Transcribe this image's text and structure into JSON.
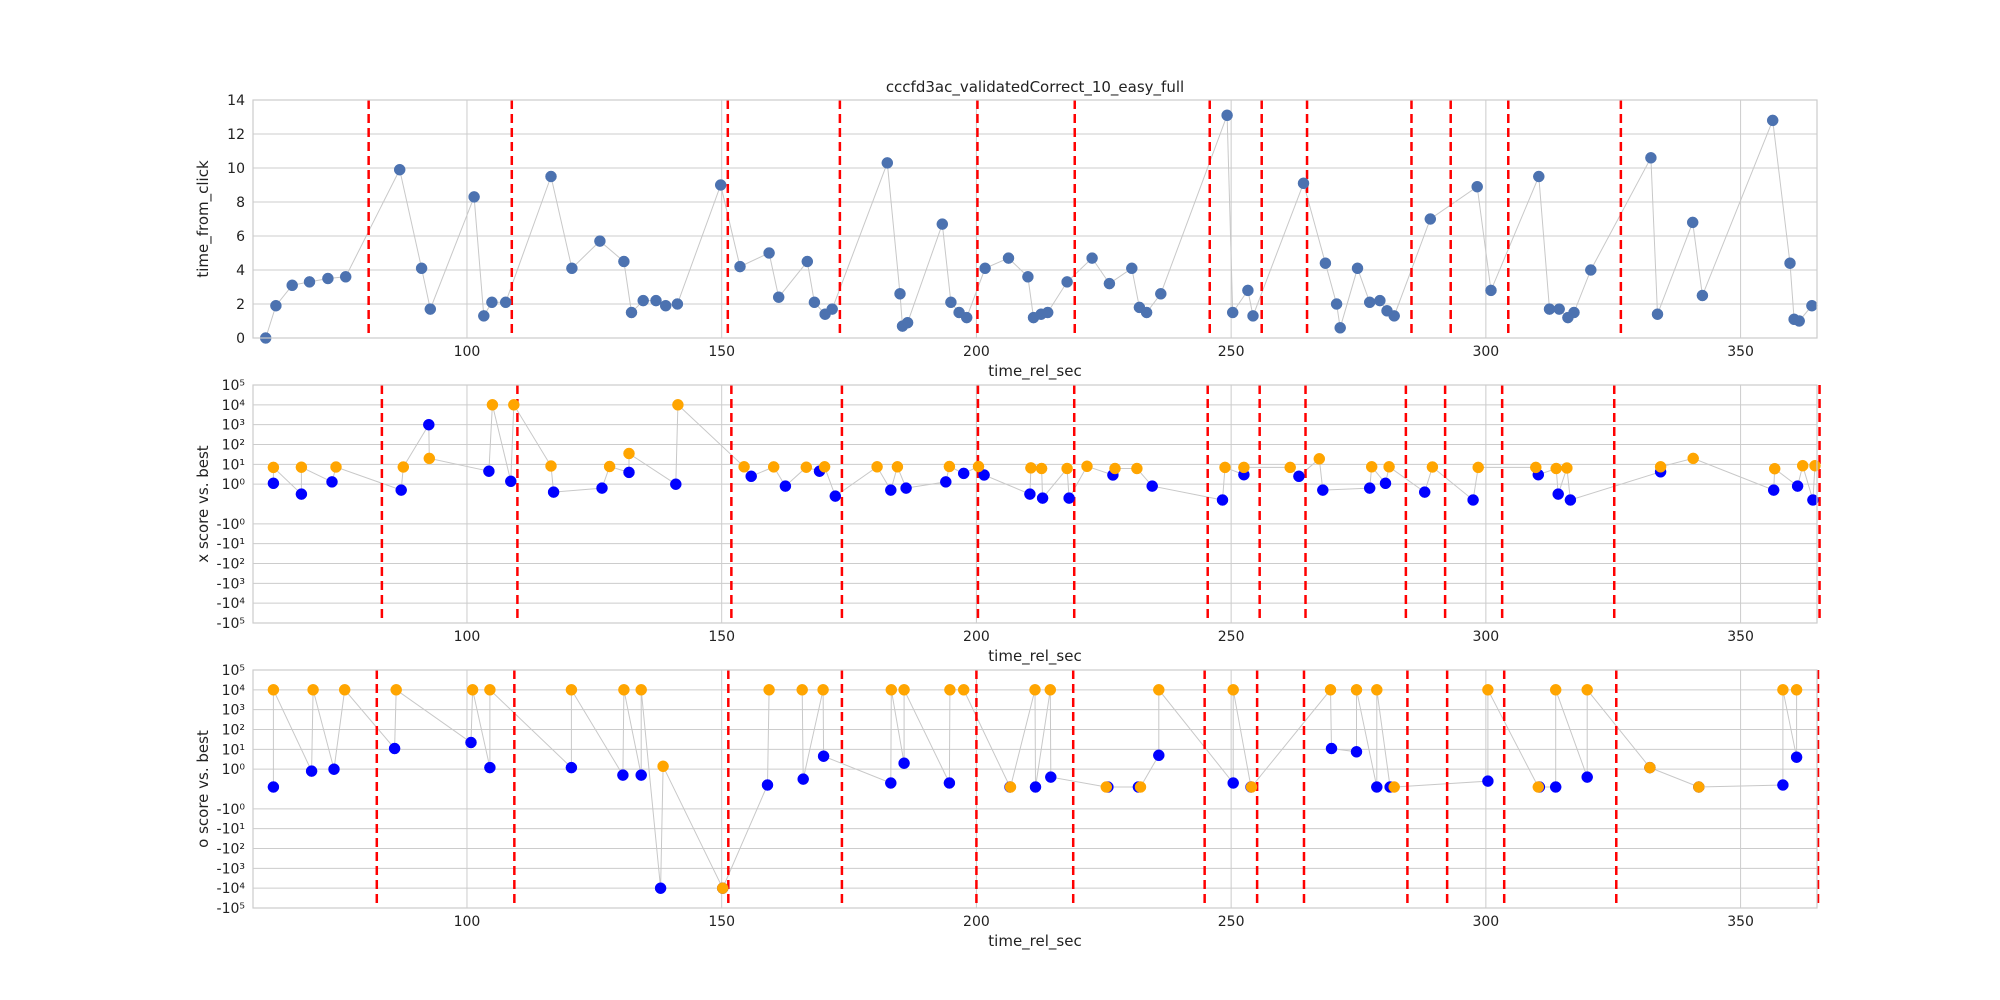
{
  "chart_data": [
    {
      "type": "scatter",
      "title": "cccfd3ac_validatedCorrect_10_easy_full",
      "xlabel": "time_rel_sec",
      "ylabel": "time_from_click",
      "xlim": [
        58,
        365
      ],
      "ylim": [
        0,
        14
      ],
      "yscale": "linear",
      "x_ticks": [
        100,
        150,
        200,
        250,
        300,
        350
      ],
      "x_tick_labels": [
        "100",
        "150",
        "200",
        "250",
        "300",
        "350"
      ],
      "y_ticks": [
        0,
        2,
        4,
        6,
        8,
        10,
        12,
        14
      ],
      "y_tick_labels": [
        "0",
        "2",
        "4",
        "6",
        "8",
        "10",
        "12",
        "14"
      ],
      "grid": true,
      "connector_color": "#c8c8c8",
      "vlines_color": "#ff0000",
      "vlines": [
        80.7,
        108.8,
        151.2,
        173.2,
        200.2,
        219.3,
        245.8,
        256,
        264.9,
        285.4,
        293.1,
        304.4,
        326.5
      ],
      "series": [
        {
          "color": "#4c72b0",
          "x": [
            60.5,
            62.5,
            65.7,
            69.1,
            72.7,
            76.2,
            86.8,
            91.1,
            92.8,
            101.4,
            103.3,
            104.9,
            107.6,
            116.5,
            120.6,
            126.1,
            130.8,
            132.3,
            134.6,
            137.1,
            139,
            141.3,
            149.8,
            153.6,
            159.3,
            161.2,
            166.8,
            168.2,
            170.3,
            171.7,
            182.5,
            185,
            185.5,
            186.5,
            193.3,
            195,
            196.6,
            198.1,
            201.7,
            206.3,
            210.1,
            211.2,
            212.7,
            214,
            217.8,
            222.7,
            226.1,
            230.5,
            232,
            233.4,
            236.2,
            249.2,
            250.3,
            253.3,
            254.3,
            264.2,
            268.5,
            270.7,
            271.4,
            274.8,
            277.2,
            279.2,
            280.6,
            282,
            289.1,
            298.3,
            301,
            310.4,
            312.5,
            314.4,
            316.1,
            317.3,
            320.6,
            332.4,
            333.7,
            340.6,
            342.5,
            356.3,
            359.7,
            360.5,
            361.5,
            364
          ],
          "y": [
            0,
            1.9,
            3.1,
            3.3,
            3.5,
            3.6,
            9.9,
            4.1,
            1.7,
            8.3,
            1.3,
            2.1,
            2.1,
            9.5,
            4.1,
            5.7,
            4.5,
            1.5,
            2.2,
            2.2,
            1.9,
            2,
            9,
            4.2,
            5,
            2.4,
            4.5,
            2.1,
            1.4,
            1.7,
            10.3,
            2.6,
            0.7,
            0.9,
            6.7,
            2.1,
            1.5,
            1.2,
            4.1,
            4.7,
            3.6,
            1.2,
            1.4,
            1.5,
            3.3,
            4.7,
            3.2,
            4.1,
            1.8,
            1.5,
            2.6,
            13.1,
            1.5,
            2.8,
            1.3,
            9.1,
            4.4,
            2,
            0.6,
            4.1,
            2.1,
            2.2,
            1.6,
            1.3,
            7,
            8.9,
            2.8,
            9.5,
            1.7,
            1.7,
            1.2,
            1.5,
            4,
            10.6,
            1.4,
            6.8,
            2.5,
            12.8,
            4.4,
            1.1,
            1,
            1.9
          ]
        }
      ]
    },
    {
      "type": "scatter",
      "title": "",
      "xlabel": "time_rel_sec",
      "ylabel": "x score vs. best",
      "xlim": [
        58,
        365
      ],
      "ylim": [
        -100000,
        100000
      ],
      "yscale": "symlog",
      "x_ticks": [
        100,
        150,
        200,
        250,
        300,
        350
      ],
      "x_tick_labels": [
        "100",
        "150",
        "200",
        "250",
        "300",
        "350"
      ],
      "y_ticks": [
        -100000,
        -10000,
        -1000,
        -100,
        -10,
        -1,
        1,
        10,
        100,
        1000,
        10000,
        100000
      ],
      "y_tick_labels": [
        "-10⁵",
        "-10⁴",
        "-10³",
        "-10²",
        "-10¹",
        "-10⁰",
        "10⁰",
        "10¹",
        "10²",
        "10³",
        "10⁴",
        "10⁵"
      ],
      "grid": true,
      "connector_color": "#c8c8c8",
      "vlines_color": "#ff0000",
      "vlines": [
        83.3,
        109.9,
        151.9,
        173.6,
        200.3,
        219.2,
        245.4,
        255.6,
        264.6,
        284.3,
        292,
        303.2,
        325.2,
        365.5
      ],
      "series": [
        {
          "name": "",
          "color": "#0000ff",
          "x": [
            62,
            67.5,
            73.5,
            87.1,
            92.5,
            104.3,
            108.6,
            117,
            126.5,
            131.8,
            141,
            155.8,
            162.5,
            169.2,
            172.3,
            183.2,
            186.2,
            194,
            197.5,
            201.5,
            210.5,
            213,
            218.2,
            226.8,
            234.5,
            248.3,
            252.5,
            263.3,
            268,
            277.2,
            280.3,
            288,
            297.5,
            310.3,
            314.2,
            316.6,
            334.3,
            356.5,
            361.2,
            364.2
          ],
          "y": [
            1.1,
            0.5,
            1.3,
            0.7,
            1000,
            4.5,
            1.4,
            0.6,
            0.8,
            3.9,
            1,
            2.5,
            0.9,
            4.5,
            0.4,
            0.7,
            0.8,
            1.3,
            3.5,
            2.9,
            0.5,
            0.3,
            0.3,
            2.9,
            0.9,
            0.2,
            3,
            2.5,
            0.7,
            0.8,
            1.1,
            0.6,
            0.2,
            3,
            0.5,
            0.2,
            4.2,
            0.7,
            0.9,
            0.2
          ]
        },
        {
          "name": "",
          "color": "#ffa500",
          "x": [
            62,
            67.5,
            74.3,
            87.5,
            92.6,
            105,
            109.2,
            116.5,
            128,
            131.8,
            141.4,
            154.4,
            160.2,
            166.6,
            170.2,
            180.5,
            184.5,
            194.7,
            200.4,
            210.7,
            212.8,
            217.8,
            221.7,
            227.2,
            231.5,
            248.8,
            252.5,
            261.6,
            267.3,
            277.6,
            281,
            289.5,
            298.5,
            309.8,
            313.8,
            315.9,
            334.3,
            340.7,
            356.7,
            362.2,
            364.6
          ],
          "y": [
            7,
            7.2,
            7.3,
            7.3,
            20,
            10000,
            10000,
            8.2,
            7.8,
            35,
            10000,
            7.5,
            7.4,
            7.2,
            7.5,
            7.5,
            7.5,
            7.8,
            7.8,
            6.6,
            6.2,
            6.2,
            8,
            6.2,
            6.2,
            7,
            7,
            7,
            19,
            7.5,
            7.5,
            7.3,
            7,
            7,
            6.2,
            6.5,
            7.5,
            20,
            6,
            8.5,
            8.5
          ]
        }
      ]
    },
    {
      "type": "scatter",
      "title": "",
      "xlabel": "time_rel_sec",
      "ylabel": "o score vs. best",
      "xlim": [
        58,
        365
      ],
      "ylim": [
        -100000,
        100000
      ],
      "yscale": "symlog",
      "x_ticks": [
        100,
        150,
        200,
        250,
        300,
        350
      ],
      "x_tick_labels": [
        "100",
        "150",
        "200",
        "250",
        "300",
        "350"
      ],
      "y_ticks": [
        -100000,
        -10000,
        -1000,
        -100,
        -10,
        -1,
        1,
        10,
        100,
        1000,
        10000,
        100000
      ],
      "y_tick_labels": [
        "-10⁵",
        "-10⁴",
        "-10³",
        "-10²",
        "-10¹",
        "-10⁰",
        "10⁰",
        "10¹",
        "10²",
        "10³",
        "10⁴",
        "10⁵"
      ],
      "grid": true,
      "connector_color": "#c8c8c8",
      "vlines_color": "#ff0000",
      "vlines": [
        82.3,
        109.3,
        151.3,
        173.6,
        200,
        219,
        244.8,
        255.1,
        264.3,
        284.6,
        292.4,
        303.6,
        325.6,
        365.2
      ],
      "series": [
        {
          "name": "",
          "color": "#0000ff",
          "x": [
            62,
            69.5,
            73.9,
            85.8,
            100.8,
            104.5,
            120.5,
            130.6,
            134.2,
            138,
            150.2,
            159,
            166,
            170,
            183.2,
            185.8,
            194.7,
            206.6,
            211.6,
            214.6,
            225.8,
            231.8,
            235.8,
            250.4,
            253.9,
            269.7,
            274.6,
            278.6,
            281.2,
            300.4,
            310.5,
            313.7,
            319.9,
            332.2,
            341.8,
            358.3,
            361
          ],
          "y": [
            0.1,
            0.9,
            1,
            11,
            22,
            1.2,
            1.2,
            0.7,
            0.7,
            -10000,
            -10000,
            0.2,
            0.5,
            4.5,
            0.3,
            2,
            0.3,
            0.1,
            0.1,
            0.6,
            0.1,
            0.1,
            5,
            0.3,
            0.1,
            11,
            7.5,
            0.1,
            0.1,
            0.4,
            0.1,
            0.1,
            0.6,
            1.2,
            0.1,
            0.2,
            4
          ]
        },
        {
          "name": "",
          "color": "#ffa500",
          "x": [
            62,
            69.8,
            76,
            86.1,
            101.1,
            104.5,
            120.5,
            130.8,
            134.2,
            138.5,
            150.2,
            159.3,
            165.8,
            169.9,
            183.3,
            185.8,
            194.8,
            197.5,
            206.7,
            211.5,
            214.5,
            225.5,
            232.2,
            235.8,
            250.4,
            254,
            269.5,
            274.6,
            278.6,
            282,
            300.4,
            310.3,
            313.7,
            319.9,
            332.2,
            341.8,
            358.3,
            361
          ],
          "y": [
            10000,
            10000,
            10000,
            10000,
            10000,
            10000,
            10000,
            10000,
            10000,
            1.4,
            -10000,
            10000,
            10000,
            10000,
            10000,
            10000,
            10000,
            10000,
            0.1,
            10000,
            10000,
            0.1,
            0.1,
            10000,
            10000,
            0.1,
            10000,
            10000,
            10000,
            0.1,
            10000,
            0.1,
            10000,
            10000,
            1.2,
            0.1,
            10000,
            10000
          ]
        }
      ]
    }
  ]
}
